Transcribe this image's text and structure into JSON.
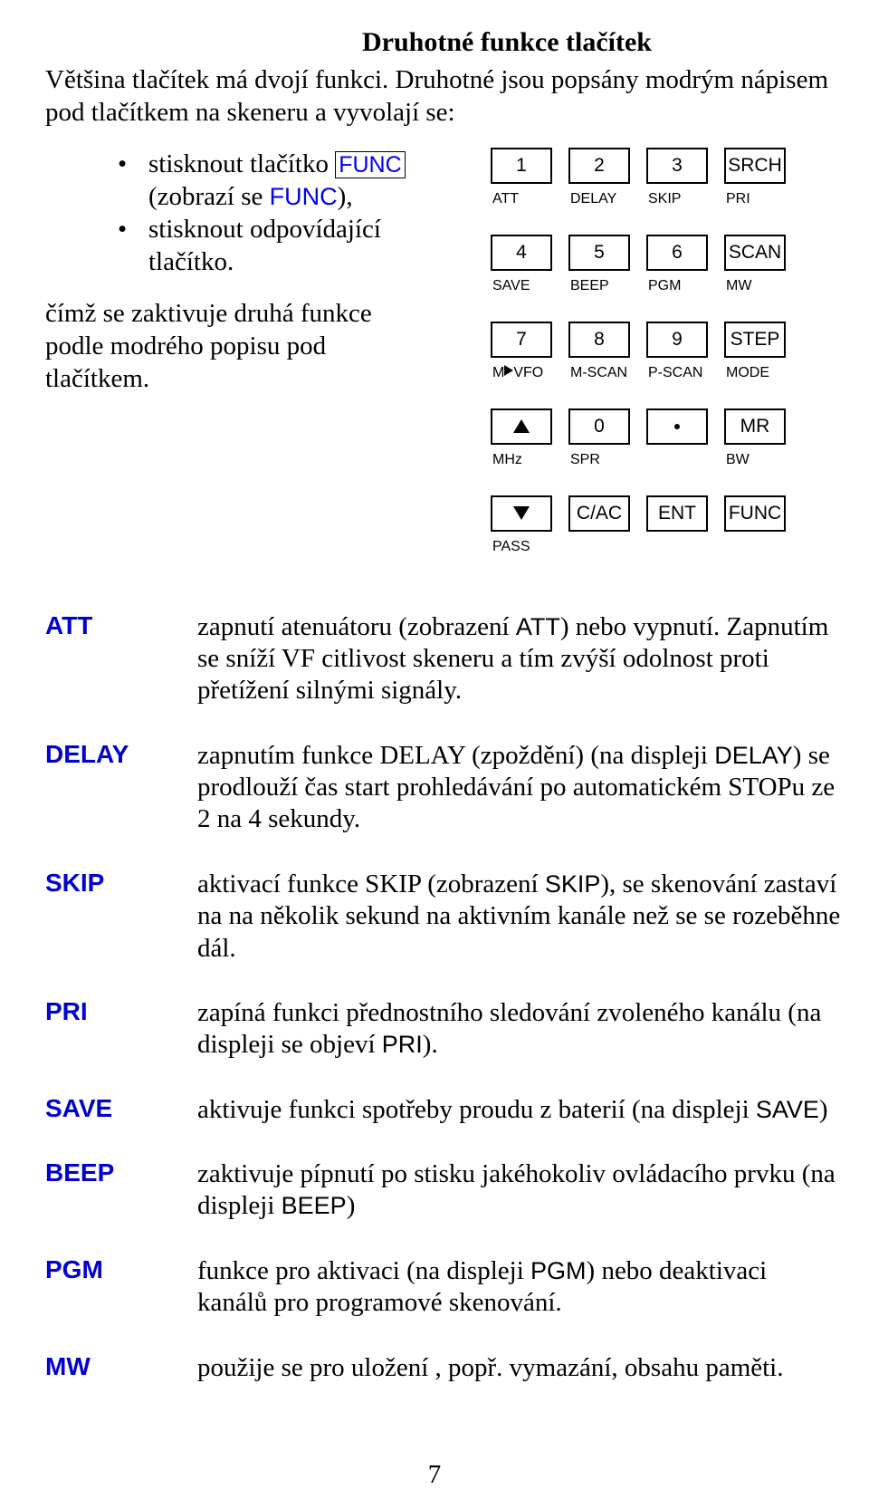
{
  "title": "Druhotné funkce tlačítek",
  "intro": "Většina tlačítek má dvojí funkci. Druhotné jsou popsány modrým nápisem pod tlačítkem na skeneru a vyvolají se:",
  "bullet1_pre": "stisknout tlačítko ",
  "bullet1_func_boxed": "FUNC",
  "bullet1_mid": " (zobrazí se ",
  "bullet1_func_plain": "FUNC",
  "bullet1_post": "),",
  "bullet2": "stisknout odpovídající tlačítko.",
  "activation": "čímž se zaktivuje druhá funkce podle modrého popisu pod tlačítkem.",
  "keypad": {
    "rows": [
      {
        "keys": [
          "1",
          "2",
          "3",
          "SRCH"
        ],
        "labels": [
          "ATT",
          "DELAY",
          "SKIP",
          "PRI"
        ]
      },
      {
        "keys": [
          "4",
          "5",
          "6",
          "SCAN"
        ],
        "labels": [
          "SAVE",
          "BEEP",
          "PGM",
          "MW"
        ]
      },
      {
        "keys": [
          "7",
          "8",
          "9",
          "STEP"
        ],
        "labels": [
          "M▶VFO",
          "M-SCAN",
          "P-SCAN",
          "MODE"
        ]
      },
      {
        "keys": [
          "△",
          "0",
          "•",
          "MR"
        ],
        "labels": [
          "MHz",
          "SPR",
          "",
          "BW"
        ]
      },
      {
        "keys": [
          "▽",
          "C/AC",
          "ENT",
          "FUNC"
        ],
        "labels": [
          "PASS",
          "",
          "",
          ""
        ]
      }
    ],
    "border_color": "#000000",
    "bg_color": "#ffffff",
    "font_family": "Arial",
    "key_font_size": 21,
    "label_font_size": 16
  },
  "definitions": [
    {
      "term": "ATT",
      "desc_pre": "zapnutí atenuátoru (zobrazení ",
      "disp": "ATT",
      "desc_post": ") nebo vypnutí. Zapnutím se sníží VF citlivost skeneru a tím zvýší odolnost proti přetížení silnými signály."
    },
    {
      "term": "DELAY",
      "desc_pre": "zapnutím funkce DELAY (zpoždění) (na displeji ",
      "disp": "DELAY",
      "desc_post": ") se prodlouží čas start prohledávání po automatickém STOPu ze 2 na 4 sekundy."
    },
    {
      "term": "SKIP",
      "desc_pre": "aktivací funkce SKIP (zobrazení ",
      "disp": "SKIP",
      "desc_post": "), se skenování zastaví na na několik sekund na aktivním kanále než se se rozeběhne dál."
    },
    {
      "term": "PRI",
      "desc_pre": "zapíná funkci přednostního sledování zvoleného kanálu (na displeji se objeví ",
      "disp": "PRI",
      "desc_post": ")."
    },
    {
      "term": "SAVE",
      "desc_pre": "aktivuje funkci spotřeby proudu z baterií (na displeji ",
      "disp": "SAVE",
      "desc_post": ")"
    },
    {
      "term": "BEEP",
      "desc_pre": "zaktivuje pípnutí po stisku jakéhokoliv ovládacího prvku (na displeji ",
      "disp": "BEEP",
      "desc_post": ")"
    },
    {
      "term": "PGM",
      "desc_pre": "funkce pro aktivaci (na displeji ",
      "disp": "PGM",
      "desc_post": ") nebo deaktivaci kanálů pro programové skenování."
    },
    {
      "term": "MW",
      "desc_pre": "použije se pro uložení , popř. vymazání, obsahu paměti.",
      "disp": "",
      "desc_post": ""
    }
  ],
  "page_number": "7",
  "colors": {
    "text": "#000000",
    "link_blue": "#0000ee",
    "term_blue": "#0000d0",
    "background": "#ffffff"
  },
  "fonts": {
    "body": "Times New Roman",
    "sans": "Arial",
    "body_size": 29,
    "title_size": 30
  }
}
